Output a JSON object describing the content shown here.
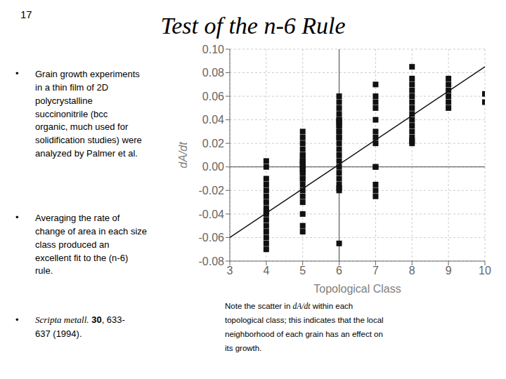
{
  "chart_data": {
    "type": "scatter",
    "title": "Test of the n-6 Rule",
    "x_label": "Topological Class",
    "y_label": "dA/dt",
    "xlim": [
      3,
      10
    ],
    "ylim": [
      -0.08,
      0.1
    ],
    "xticks": [
      3,
      4,
      5,
      6,
      7,
      8,
      9,
      10
    ],
    "yticks": [
      -0.08,
      -0.06,
      -0.04,
      -0.02,
      {
        "value": 0,
        "label": "0.00"
      },
      0.02,
      0.04,
      0.06,
      0.08,
      {
        "value": 0.1,
        "label": "0.10"
      }
    ],
    "grid": true,
    "vline_x": 6,
    "hline_y": 0,
    "series": [
      {
        "type": "scatter",
        "marker": "square",
        "color": "#111111",
        "x": [
          4,
          4,
          4,
          4,
          4,
          4,
          4,
          4,
          4,
          4,
          4,
          4,
          4,
          4,
          4,
          4,
          5,
          5,
          5,
          5,
          5,
          5,
          5,
          5,
          5,
          5,
          5,
          5,
          5,
          5,
          5,
          5,
          5,
          5,
          5,
          5,
          5,
          5,
          5,
          5,
          6,
          6,
          6,
          6,
          6,
          6,
          6,
          6,
          6,
          6,
          6,
          6,
          6,
          6,
          6,
          6,
          6,
          6,
          6,
          6,
          6,
          6,
          6,
          6,
          7,
          7,
          7,
          7,
          7,
          7,
          7,
          7,
          7,
          7,
          7,
          7,
          7,
          8,
          8,
          8,
          8,
          8,
          8,
          8,
          8,
          8,
          8,
          8,
          8,
          8,
          8,
          9,
          9,
          9,
          9,
          9,
          9,
          10,
          10
        ],
        "values": [
          -0.07,
          -0.065,
          -0.06,
          -0.055,
          -0.05,
          -0.045,
          -0.04,
          -0.038,
          -0.035,
          -0.03,
          -0.025,
          -0.02,
          -0.015,
          -0.01,
          0.0,
          0.005,
          -0.055,
          -0.05,
          -0.04,
          -0.03,
          -0.025,
          -0.02,
          -0.015,
          -0.01,
          -0.005,
          0.0,
          0.005,
          0.005,
          0.01,
          0.015,
          0.02,
          0.025,
          0.03,
          0.0,
          0.005,
          0.01,
          0.002,
          -0.002,
          -0.005,
          -0.01,
          -0.065,
          -0.02,
          -0.015,
          -0.01,
          -0.005,
          0.0,
          0.005,
          0.01,
          0.015,
          0.02,
          0.025,
          0.03,
          0.03,
          0.035,
          0.04,
          0.04,
          0.045,
          0.05,
          0.055,
          0.06,
          0.035,
          -0.018,
          0.025,
          0.038,
          -0.025,
          -0.02,
          -0.015,
          0.0,
          0.0,
          0.02,
          0.025,
          0.03,
          0.04,
          0.05,
          0.055,
          0.06,
          0.07,
          0.02,
          0.025,
          0.03,
          0.035,
          0.04,
          0.045,
          0.05,
          0.055,
          0.06,
          0.065,
          0.07,
          0.075,
          0.085,
          0.022,
          0.05,
          0.055,
          0.06,
          0.065,
          0.07,
          0.075,
          0.055,
          0.062
        ]
      },
      {
        "type": "line",
        "line_style": "solid",
        "color": "#111111",
        "x": [
          3,
          10
        ],
        "values": [
          -0.06,
          0.085
        ]
      }
    ],
    "annotations": [
      "17",
      "•",
      "Grain growth experiments\nin a thin film of 2D\npolycrystalline\nsuccinonitrile (bcc\norganic, much used for\nsolidification studies) were\nanalyzed by Palmer et al.",
      "•",
      "Averaging the rate of\nchange of area in each size\nclass produced an\nexcellent fit to the (n-6)\nrule.",
      "•",
      "Scripta metall.",
      " 30",
      ", 633-",
      "637 (1994).",
      "Note the scatter in ",
      "dA/dt",
      " within each",
      "topological class; this indicates that the local",
      "neighborhood of each grain has an effect on",
      "its growth."
    ]
  }
}
